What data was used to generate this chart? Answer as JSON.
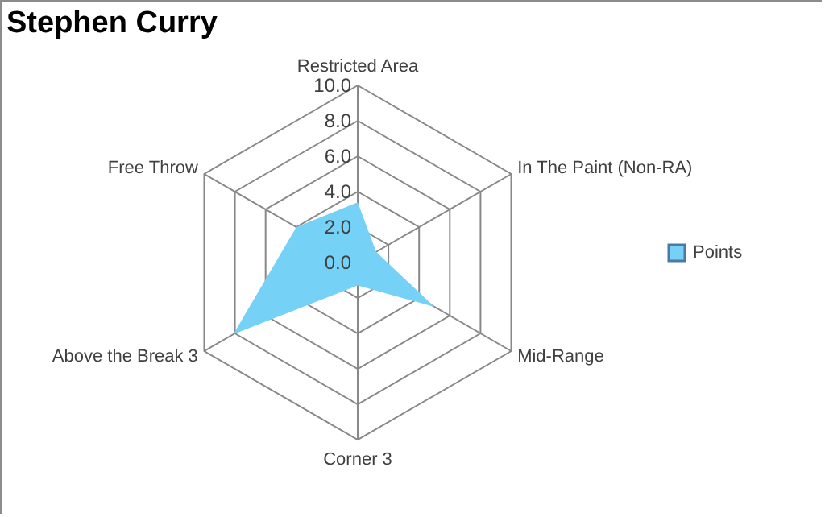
{
  "chart_data": {
    "type": "radar",
    "title": "Stephen Curry",
    "categories": [
      "Restricted Area",
      "In The Paint (Non-RA)",
      "Mid-Range",
      "Corner 3",
      "Above the Break 3",
      "Free Throw"
    ],
    "series": [
      {
        "name": "Points",
        "color": "#75d1f5",
        "values": [
          3.4,
          1.2,
          5.0,
          1.3,
          8.1,
          4.0
        ]
      }
    ],
    "ylim": [
      0,
      10
    ],
    "yticks": [
      {
        "value": 0,
        "label": "0.0"
      },
      {
        "value": 2,
        "label": "2.0"
      },
      {
        "value": 4,
        "label": "4.0"
      },
      {
        "value": 6,
        "label": "6.0"
      },
      {
        "value": 8,
        "label": "8.0"
      },
      {
        "value": 10,
        "label": "10.0"
      }
    ],
    "grid": true,
    "legend": "right"
  }
}
